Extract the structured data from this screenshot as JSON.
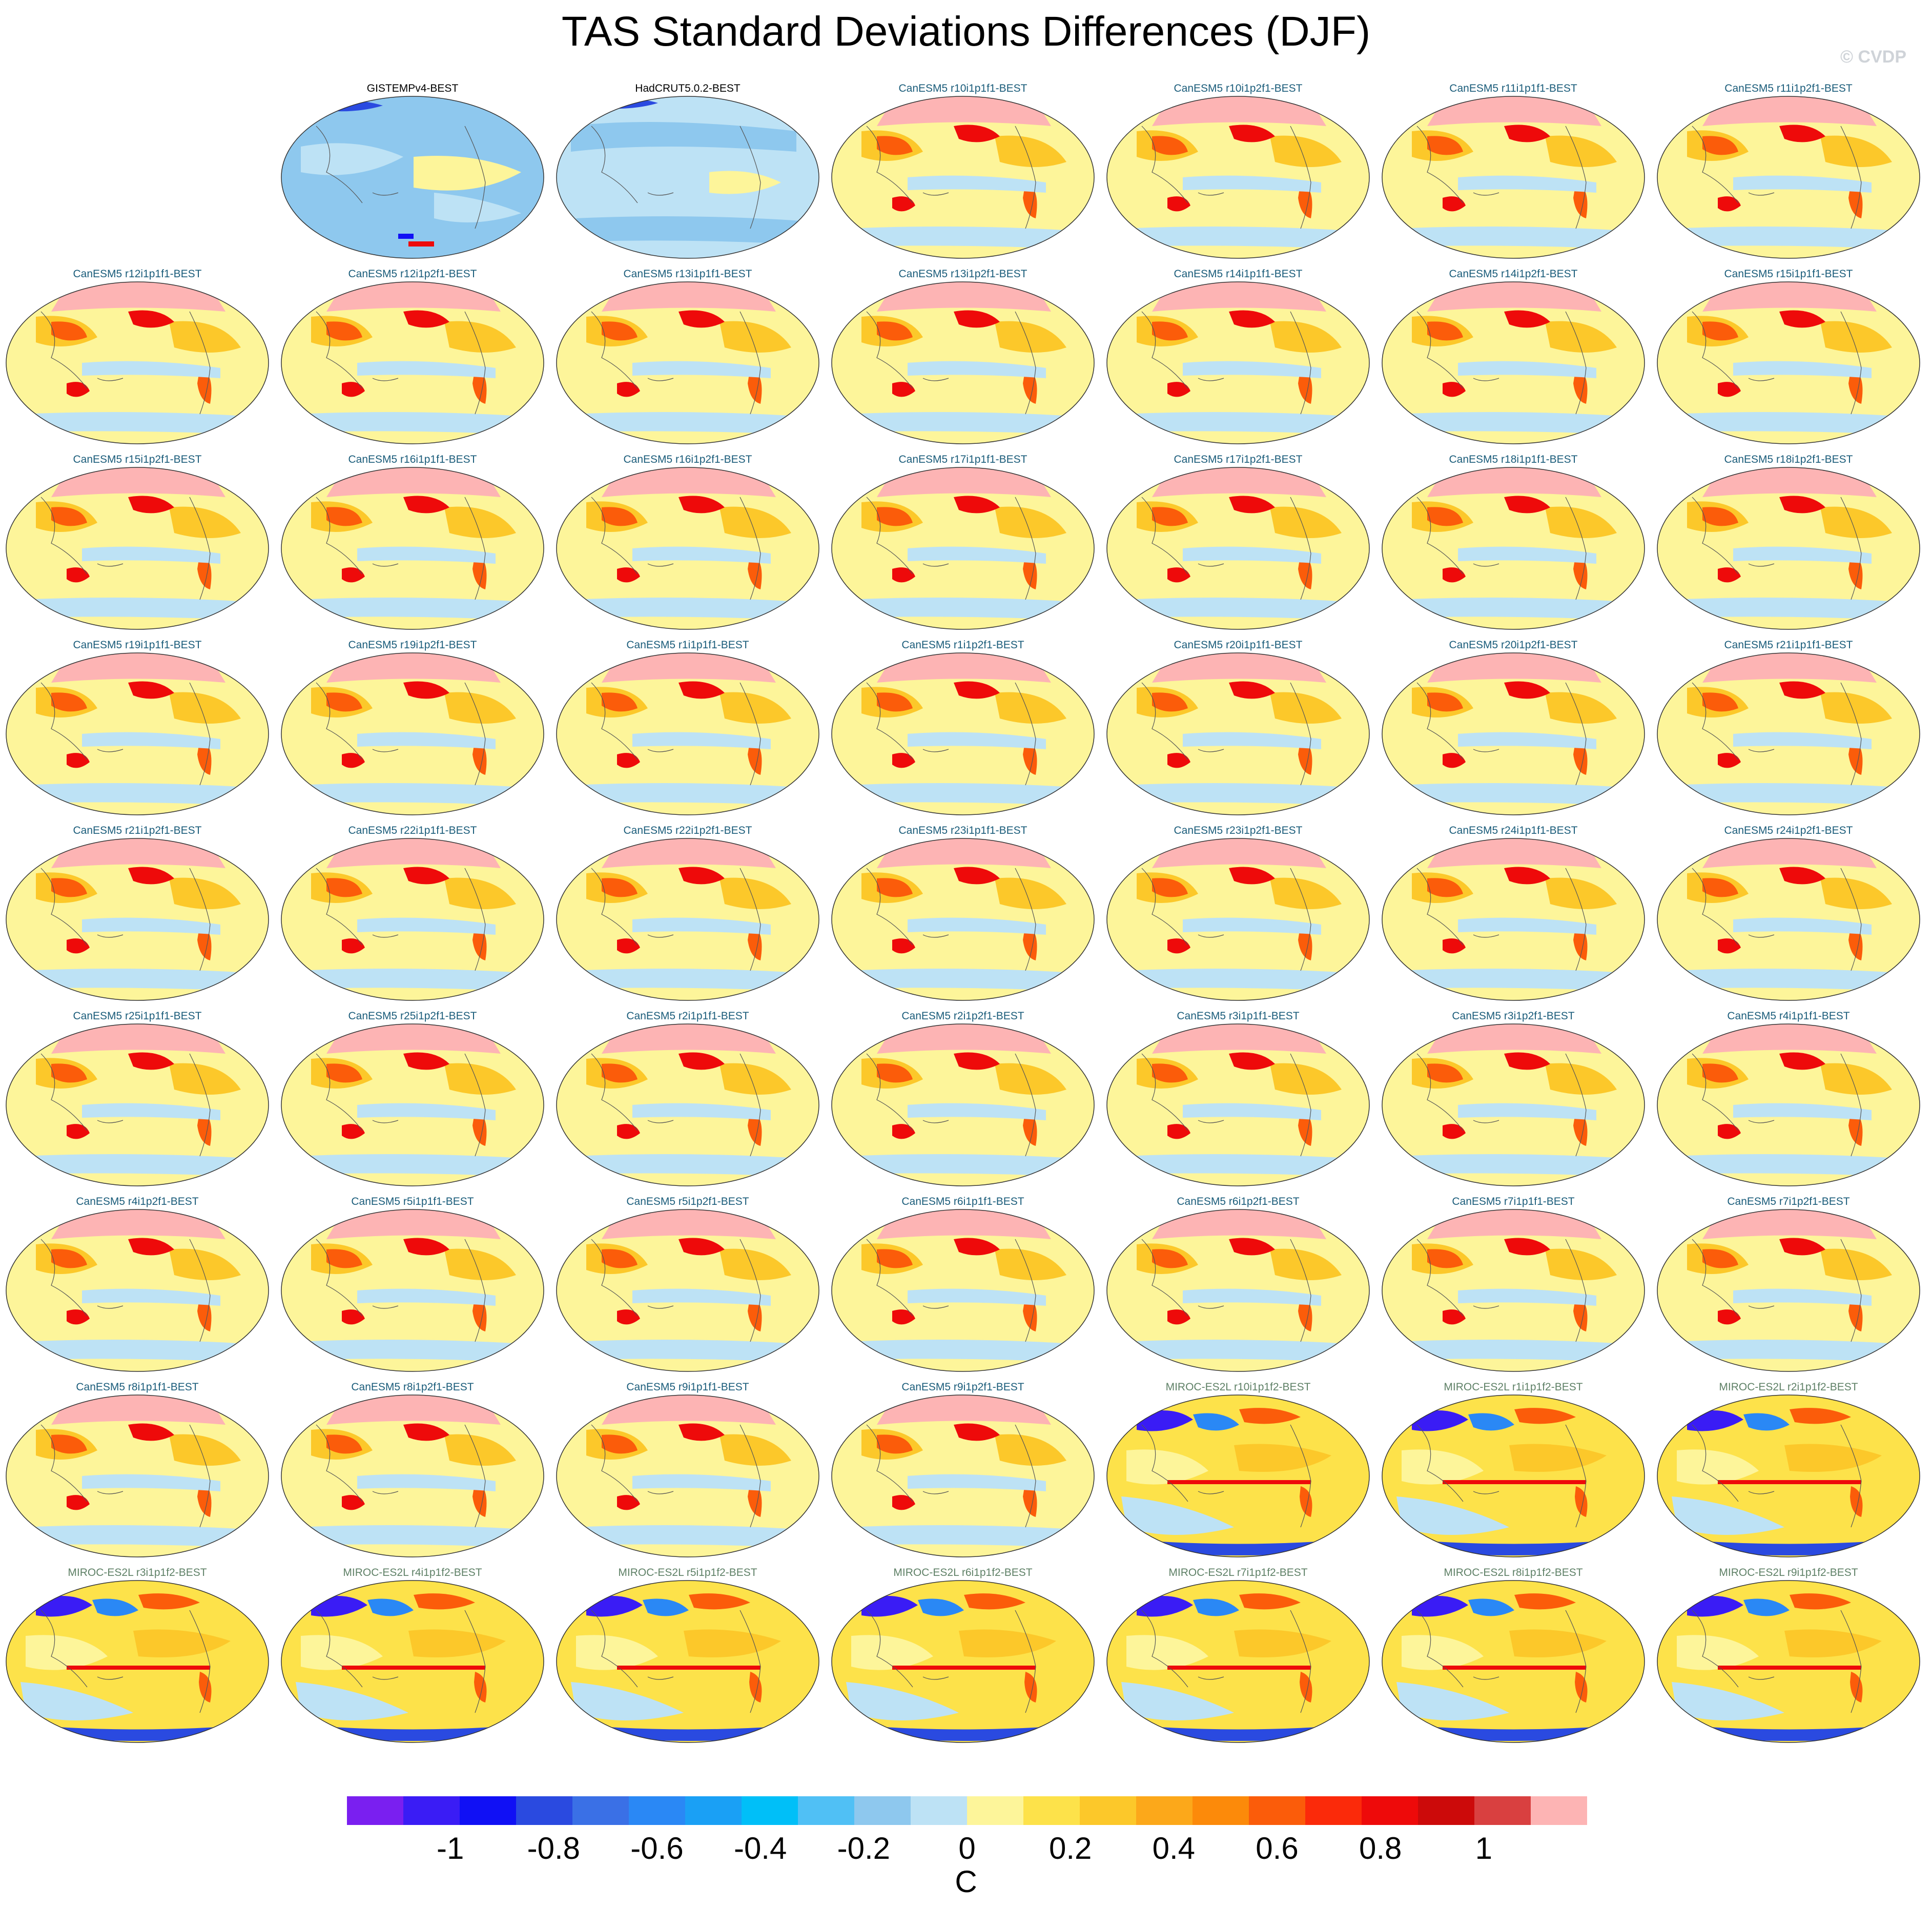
{
  "figure": {
    "title": "TAS Standard Deviations Differences (DJF)",
    "watermark": "© CVDP",
    "units": "C"
  },
  "panels": [
    {
      "title": "",
      "group": "empty"
    },
    {
      "title": "GISTEMPv4-BEST",
      "group": "obs1"
    },
    {
      "title": "HadCRUT5.0.2-BEST",
      "group": "obs2"
    },
    {
      "title": "CanESM5 r10i1p1f1-BEST",
      "group": "can"
    },
    {
      "title": "CanESM5 r10i1p2f1-BEST",
      "group": "can"
    },
    {
      "title": "CanESM5 r11i1p1f1-BEST",
      "group": "can"
    },
    {
      "title": "CanESM5 r11i1p2f1-BEST",
      "group": "can"
    },
    {
      "title": "CanESM5 r12i1p1f1-BEST",
      "group": "can"
    },
    {
      "title": "CanESM5 r12i1p2f1-BEST",
      "group": "can"
    },
    {
      "title": "CanESM5 r13i1p1f1-BEST",
      "group": "can"
    },
    {
      "title": "CanESM5 r13i1p2f1-BEST",
      "group": "can"
    },
    {
      "title": "CanESM5 r14i1p1f1-BEST",
      "group": "can"
    },
    {
      "title": "CanESM5 r14i1p2f1-BEST",
      "group": "can"
    },
    {
      "title": "CanESM5 r15i1p1f1-BEST",
      "group": "can"
    },
    {
      "title": "CanESM5 r15i1p2f1-BEST",
      "group": "can"
    },
    {
      "title": "CanESM5 r16i1p1f1-BEST",
      "group": "can"
    },
    {
      "title": "CanESM5 r16i1p2f1-BEST",
      "group": "can"
    },
    {
      "title": "CanESM5 r17i1p1f1-BEST",
      "group": "can"
    },
    {
      "title": "CanESM5 r17i1p2f1-BEST",
      "group": "can"
    },
    {
      "title": "CanESM5 r18i1p1f1-BEST",
      "group": "can"
    },
    {
      "title": "CanESM5 r18i1p2f1-BEST",
      "group": "can"
    },
    {
      "title": "CanESM5 r19i1p1f1-BEST",
      "group": "can"
    },
    {
      "title": "CanESM5 r19i1p2f1-BEST",
      "group": "can"
    },
    {
      "title": "CanESM5 r1i1p1f1-BEST",
      "group": "can"
    },
    {
      "title": "CanESM5 r1i1p2f1-BEST",
      "group": "can"
    },
    {
      "title": "CanESM5 r20i1p1f1-BEST",
      "group": "can"
    },
    {
      "title": "CanESM5 r20i1p2f1-BEST",
      "group": "can"
    },
    {
      "title": "CanESM5 r21i1p1f1-BEST",
      "group": "can"
    },
    {
      "title": "CanESM5 r21i1p2f1-BEST",
      "group": "can"
    },
    {
      "title": "CanESM5 r22i1p1f1-BEST",
      "group": "can"
    },
    {
      "title": "CanESM5 r22i1p2f1-BEST",
      "group": "can"
    },
    {
      "title": "CanESM5 r23i1p1f1-BEST",
      "group": "can"
    },
    {
      "title": "CanESM5 r23i1p2f1-BEST",
      "group": "can"
    },
    {
      "title": "CanESM5 r24i1p1f1-BEST",
      "group": "can"
    },
    {
      "title": "CanESM5 r24i1p2f1-BEST",
      "group": "can"
    },
    {
      "title": "CanESM5 r25i1p1f1-BEST",
      "group": "can"
    },
    {
      "title": "CanESM5 r25i1p2f1-BEST",
      "group": "can"
    },
    {
      "title": "CanESM5 r2i1p1f1-BEST",
      "group": "can"
    },
    {
      "title": "CanESM5 r2i1p2f1-BEST",
      "group": "can"
    },
    {
      "title": "CanESM5 r3i1p1f1-BEST",
      "group": "can"
    },
    {
      "title": "CanESM5 r3i1p2f1-BEST",
      "group": "can"
    },
    {
      "title": "CanESM5 r4i1p1f1-BEST",
      "group": "can"
    },
    {
      "title": "CanESM5 r4i1p2f1-BEST",
      "group": "can"
    },
    {
      "title": "CanESM5 r5i1p1f1-BEST",
      "group": "can"
    },
    {
      "title": "CanESM5 r5i1p2f1-BEST",
      "group": "can"
    },
    {
      "title": "CanESM5 r6i1p1f1-BEST",
      "group": "can"
    },
    {
      "title": "CanESM5 r6i1p2f1-BEST",
      "group": "can"
    },
    {
      "title": "CanESM5 r7i1p1f1-BEST",
      "group": "can"
    },
    {
      "title": "CanESM5 r7i1p2f1-BEST",
      "group": "can"
    },
    {
      "title": "CanESM5 r8i1p1f1-BEST",
      "group": "can"
    },
    {
      "title": "CanESM5 r8i1p2f1-BEST",
      "group": "can"
    },
    {
      "title": "CanESM5 r9i1p1f1-BEST",
      "group": "can"
    },
    {
      "title": "CanESM5 r9i1p2f1-BEST",
      "group": "can"
    },
    {
      "title": "MIROC-ES2L r10i1p1f2-BEST",
      "group": "mir"
    },
    {
      "title": "MIROC-ES2L r1i1p1f2-BEST",
      "group": "mir"
    },
    {
      "title": "MIROC-ES2L r2i1p1f2-BEST",
      "group": "mir"
    },
    {
      "title": "MIROC-ES2L r3i1p1f2-BEST",
      "group": "mir"
    },
    {
      "title": "MIROC-ES2L r4i1p1f2-BEST",
      "group": "mir"
    },
    {
      "title": "MIROC-ES2L r5i1p1f2-BEST",
      "group": "mir"
    },
    {
      "title": "MIROC-ES2L r6i1p1f2-BEST",
      "group": "mir"
    },
    {
      "title": "MIROC-ES2L r7i1p1f2-BEST",
      "group": "mir"
    },
    {
      "title": "MIROC-ES2L r8i1p1f2-BEST",
      "group": "mir"
    },
    {
      "title": "MIROC-ES2L r9i1p1f2-BEST",
      "group": "mir"
    }
  ],
  "colorbar": {
    "colors": [
      "#7a1ff0",
      "#3a1cf5",
      "#1010f5",
      "#2a4ae0",
      "#3a70e6",
      "#2a88f5",
      "#1aa0f5",
      "#00bff8",
      "#50c0f5",
      "#8ec8ee",
      "#bde2f5",
      "#fdf59a",
      "#fde24a",
      "#fcc82a",
      "#fca81a",
      "#fc8a0a",
      "#fb5c0a",
      "#fb2a0a",
      "#ee0a0a",
      "#cc0a0a",
      "#d94040",
      "#fdb4b4"
    ],
    "tick_labels": [
      "-1",
      "-0.8",
      "-0.6",
      "-0.4",
      "-0.2",
      "0",
      "0.2",
      "0.4",
      "0.6",
      "0.8",
      "1"
    ],
    "tick_values": [
      -1,
      -0.8,
      -0.6,
      -0.4,
      -0.2,
      0,
      0.2,
      0.4,
      0.6,
      0.8,
      1
    ],
    "range": [
      -1.2,
      1.2
    ]
  }
}
